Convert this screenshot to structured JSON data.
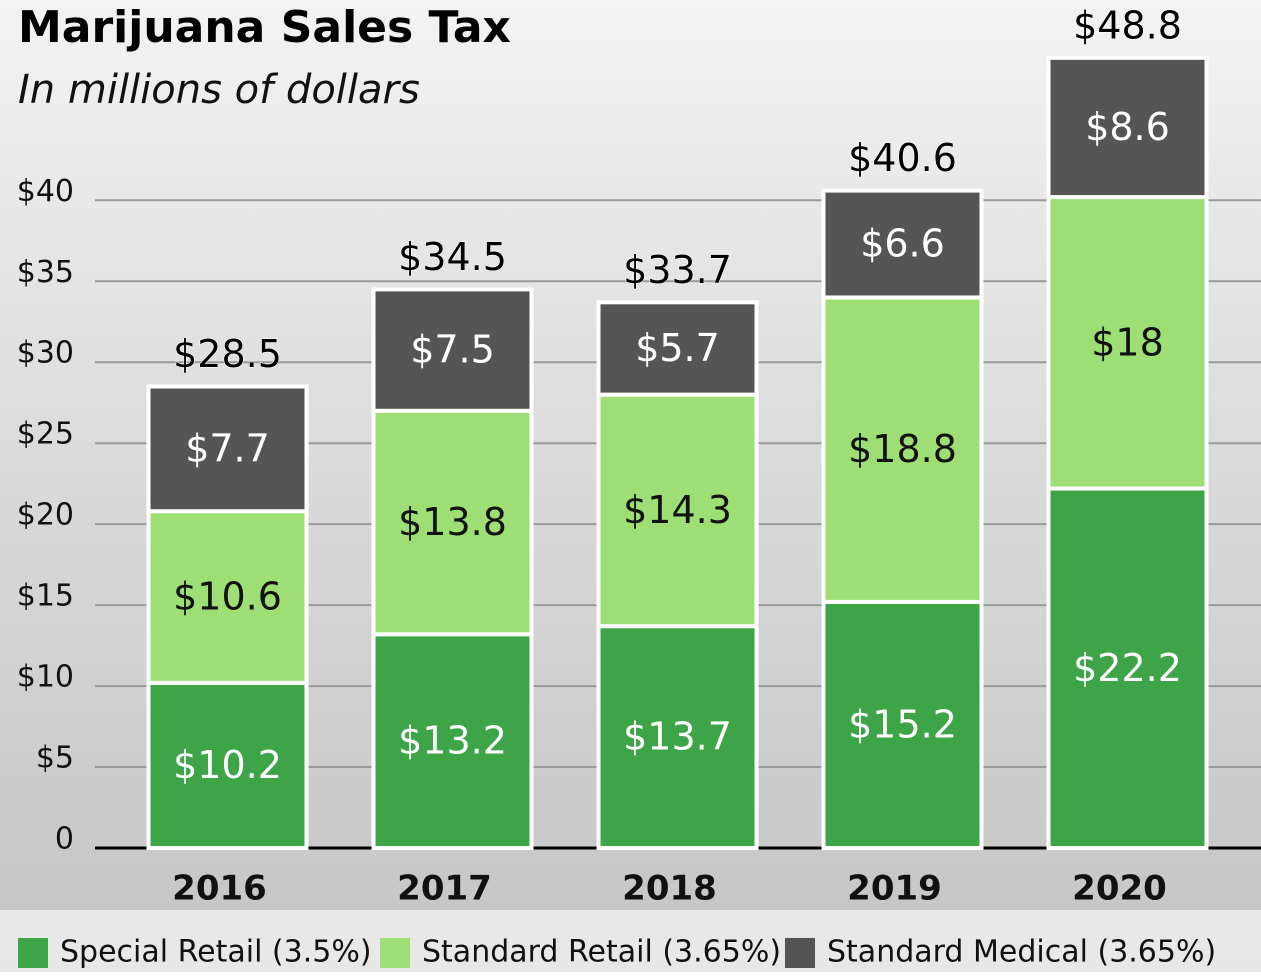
{
  "chart_data": {
    "type": "stacked-bar",
    "title": "Marijuana Sales Tax",
    "subtitle": "In millions of dollars",
    "categories": [
      "2016",
      "2017",
      "2018",
      "2019",
      "2020"
    ],
    "series": [
      {
        "name": "Special Retail (3.5%)",
        "color": "#3da447",
        "values": [
          10.2,
          13.2,
          13.7,
          15.2,
          22.2
        ],
        "value_labels": [
          "$10.2",
          "$13.2",
          "$13.7",
          "$15.2",
          "$22.2"
        ]
      },
      {
        "name": "Standard Retail (3.65%)",
        "color": "#9ddf74",
        "values": [
          10.6,
          13.8,
          14.3,
          18.8,
          18
        ],
        "value_labels": [
          "$10.6",
          "$13.8",
          "$14.3",
          "$18.8",
          "$18"
        ]
      },
      {
        "name": "Standard Medical (3.65%)",
        "color": "#555555",
        "values": [
          7.7,
          7.5,
          5.7,
          6.6,
          8.6
        ],
        "value_labels": [
          "$7.7",
          "$7.5",
          "$5.7",
          "$6.6",
          "$8.6"
        ]
      }
    ],
    "totals": {
      "values": [
        28.5,
        34.5,
        33.7,
        40.6,
        48.8
      ],
      "value_labels": [
        "$28.5",
        "$34.5",
        "$33.7",
        "$40.6",
        "$48.8"
      ]
    },
    "ylim": [
      0,
      52
    ],
    "yticks": [
      0,
      {
        "value": 5,
        "label": "$5"
      },
      {
        "value": 10,
        "label": "$10"
      },
      {
        "value": 15,
        "label": "$15"
      },
      {
        "value": 20,
        "label": "$20"
      },
      {
        "value": 25,
        "label": "$25"
      },
      {
        "value": 30,
        "label": "$30"
      },
      {
        "value": 35,
        "label": "$35"
      },
      {
        "value": 40,
        "label": "$40"
      }
    ],
    "grid": true
  }
}
